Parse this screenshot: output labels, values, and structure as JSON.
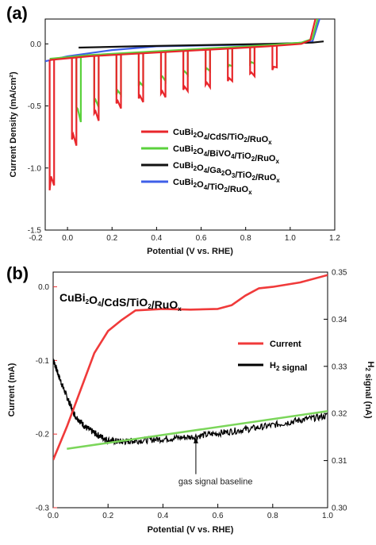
{
  "chart_data": [
    {
      "panel_label": "(a)",
      "type": "line",
      "xlabel": "Potential (V vs. RHE)",
      "ylabel": "Current Density (mA/cm²)",
      "xlim": [
        -0.1,
        1.2
      ],
      "ylim": [
        -1.5,
        0.2
      ],
      "x_ticks": [
        "-0.2",
        "0.0",
        "0.2",
        "0.4",
        "0.6",
        "0.8",
        "1.0",
        "1.2"
      ],
      "y_ticks": [
        "0.0",
        "-0.5",
        "-1.0",
        "-1.5"
      ],
      "grid": false,
      "legend_position": "lower-right",
      "chopped_light": true,
      "series": [
        {
          "name": "CuBi2O4/CdS/TiO2/RuOx",
          "label_parts": [
            [
              "CuBi",
              "2"
            ],
            [
              "O",
              "4"
            ],
            [
              "/CdS/TiO",
              "2"
            ],
            [
              "/RuO",
              "x"
            ]
          ],
          "color": "#e8262b",
          "dark": [
            [
              -0.08,
              -0.13
            ],
            [
              0.1,
              -0.1
            ],
            [
              0.3,
              -0.08
            ],
            [
              0.5,
              -0.06
            ],
            [
              0.7,
              -0.04
            ],
            [
              0.9,
              -0.02
            ],
            [
              1.05,
              0.0
            ],
            [
              1.09,
              0.03
            ],
            [
              1.12,
              0.25
            ]
          ],
          "light": [
            [
              -0.08,
              -1.18
            ],
            [
              -0.06,
              -1.14
            ],
            [
              0.02,
              -0.77
            ],
            [
              0.05,
              -0.82
            ],
            [
              0.12,
              -0.56
            ],
            [
              0.18,
              -0.62
            ],
            [
              0.22,
              -0.48
            ],
            [
              0.28,
              -0.52
            ],
            [
              0.32,
              -0.44
            ],
            [
              0.36,
              -0.47
            ],
            [
              0.42,
              -0.4
            ],
            [
              0.48,
              -0.43
            ],
            [
              0.52,
              -0.37
            ],
            [
              0.58,
              -0.38
            ],
            [
              0.62,
              -0.33
            ],
            [
              0.68,
              -0.35
            ],
            [
              0.72,
              -0.3
            ],
            [
              0.78,
              -0.3
            ],
            [
              0.82,
              -0.24
            ],
            [
              0.88,
              -0.26
            ],
            [
              0.92,
              -0.21
            ],
            [
              0.98,
              -0.19
            ]
          ],
          "pulse_width": 0.02
        },
        {
          "name": "CuBi2O4/BiVO4/TiO2/RuOx",
          "label_parts": [
            [
              "CuBi",
              "2"
            ],
            [
              "O",
              "4"
            ],
            [
              "/BiVO",
              "4"
            ],
            [
              "/TiO",
              "2"
            ],
            [
              "/RuO",
              "x"
            ]
          ],
          "color": "#5ad13c",
          "dark": [
            [
              -0.08,
              -0.12
            ],
            [
              0.1,
              -0.09
            ],
            [
              0.3,
              -0.07
            ],
            [
              0.5,
              -0.05
            ],
            [
              0.7,
              -0.03
            ],
            [
              0.9,
              -0.01
            ],
            [
              1.05,
              0.01
            ],
            [
              1.1,
              0.04
            ],
            [
              1.13,
              0.25
            ]
          ],
          "light": [
            [
              0.04,
              -0.51
            ],
            [
              0.08,
              -0.63
            ],
            [
              0.12,
              -0.47
            ],
            [
              0.18,
              -0.51
            ],
            [
              0.22,
              -0.41
            ],
            [
              0.28,
              -0.41
            ],
            [
              0.32,
              -0.34
            ],
            [
              0.38,
              -0.34
            ],
            [
              0.42,
              -0.27
            ],
            [
              0.48,
              -0.3
            ],
            [
              0.52,
              -0.23
            ],
            [
              0.58,
              -0.25
            ],
            [
              0.62,
              -0.21
            ],
            [
              0.68,
              -0.22
            ],
            [
              0.72,
              -0.19
            ],
            [
              0.78,
              -0.18
            ],
            [
              0.82,
              -0.16
            ]
          ],
          "pulse_width": 0.02
        },
        {
          "name": "CuBi2O4/Ga2O3/TiO2/RuOx",
          "label_parts": [
            [
              "CuBi",
              "2"
            ],
            [
              "O",
              "4"
            ],
            [
              "/Ga",
              "2"
            ],
            [
              "O",
              "3"
            ],
            [
              "/TiO",
              "2"
            ],
            [
              "/RuO",
              "x"
            ]
          ],
          "color": "#111111",
          "dark": [
            [
              0.05,
              -0.03
            ],
            [
              0.3,
              -0.02
            ],
            [
              0.6,
              -0.01
            ],
            [
              0.9,
              0.0
            ],
            [
              1.1,
              0.01
            ],
            [
              1.15,
              0.02
            ]
          ],
          "light": []
        },
        {
          "name": "CuBi2O4/TiO2/RuOx",
          "label_parts": [
            [
              "CuBi",
              "2"
            ],
            [
              "O",
              "4"
            ],
            [
              "/TiO",
              "2"
            ],
            [
              "/RuO",
              "x"
            ]
          ],
          "color": "#3f5fe8",
          "dark": [
            [
              -0.1,
              -0.14
            ],
            [
              0.0,
              -0.1
            ],
            [
              0.2,
              -0.05
            ],
            [
              0.4,
              -0.02
            ],
            [
              0.7,
              -0.01
            ],
            [
              1.0,
              0.0
            ],
            [
              1.1,
              0.02
            ],
            [
              1.14,
              0.25
            ]
          ],
          "light": []
        }
      ]
    },
    {
      "panel_label": "(b)",
      "type": "line",
      "title_parts": [
        [
          "CuBi",
          "2"
        ],
        [
          "O",
          "4"
        ],
        [
          "/CdS/TiO",
          "2"
        ],
        [
          "/RuO",
          "x"
        ]
      ],
      "xlabel": "Potential (V vs. RHE)",
      "ylabel_left": "Current (mA)",
      "ylabel_right_parts": [
        [
          "H",
          "2"
        ],
        [
          " signal (nA)",
          ""
        ]
      ],
      "xlim": [
        0.0,
        1.0
      ],
      "ylim_left": [
        -0.3,
        0.02
      ],
      "ylim_right": [
        0.3,
        0.35
      ],
      "x_ticks": [
        "0.0",
        "0.2",
        "0.4",
        "0.6",
        "0.8",
        "1.0"
      ],
      "y_ticks_left": [
        "0.0",
        "-0.1",
        "-0.2",
        "-0.3"
      ],
      "y_ticks_right": [
        "0.35",
        "0.34",
        "0.33",
        "0.32",
        "0.31",
        "0.30"
      ],
      "legend_position": "right",
      "annotation": "gas signal baseline",
      "series": [
        {
          "name": "Current",
          "color": "#f03a3a",
          "axis": "left",
          "points": [
            [
              0.0,
              -0.235
            ],
            [
              0.05,
              -0.19
            ],
            [
              0.1,
              -0.14
            ],
            [
              0.15,
              -0.09
            ],
            [
              0.2,
              -0.06
            ],
            [
              0.25,
              -0.045
            ],
            [
              0.3,
              -0.032
            ],
            [
              0.4,
              -0.03
            ],
            [
              0.5,
              -0.031
            ],
            [
              0.6,
              -0.03
            ],
            [
              0.65,
              -0.025
            ],
            [
              0.7,
              -0.012
            ],
            [
              0.75,
              -0.002
            ],
            [
              0.8,
              0.0
            ],
            [
              0.9,
              0.006
            ],
            [
              1.0,
              0.016
            ]
          ]
        },
        {
          "name_parts": [
            [
              "H",
              "2"
            ],
            [
              " signal",
              ""
            ]
          ],
          "color": "#000000",
          "axis": "right",
          "points": [
            [
              0.0,
              0.3315
            ],
            [
              0.02,
              0.328
            ],
            [
              0.05,
              0.3235
            ],
            [
              0.08,
              0.3195
            ],
            [
              0.12,
              0.317
            ],
            [
              0.16,
              0.3155
            ],
            [
              0.2,
              0.3143
            ],
            [
              0.25,
              0.314
            ],
            [
              0.3,
              0.3142
            ],
            [
              0.4,
              0.3146
            ],
            [
              0.5,
              0.315
            ],
            [
              0.6,
              0.3158
            ],
            [
              0.7,
              0.3166
            ],
            [
              0.8,
              0.3175
            ],
            [
              0.9,
              0.3186
            ],
            [
              1.0,
              0.3195
            ]
          ],
          "noise": 0.0007
        },
        {
          "name": "baseline",
          "color": "#7bd65a",
          "axis": "right",
          "points": [
            [
              0.05,
              0.3125
            ],
            [
              1.0,
              0.3205
            ]
          ]
        }
      ]
    }
  ]
}
